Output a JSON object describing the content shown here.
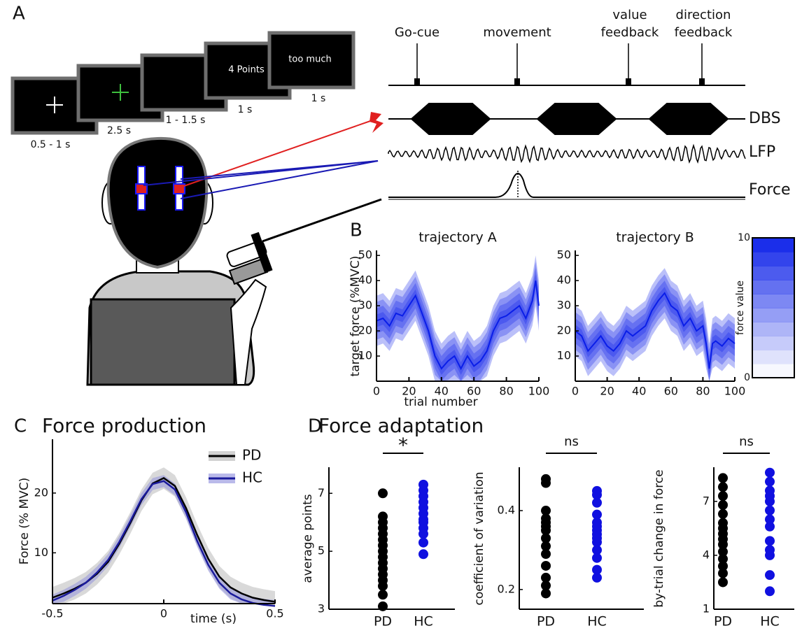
{
  "panel_labels": [
    "A",
    "B",
    "C",
    "D"
  ],
  "panel_d_title": "Force adaptation",
  "panel_a": {
    "screens": [
      {
        "duration": "0.5 - 1 s"
      },
      {
        "duration": "2.5 s"
      },
      {
        "duration": "1 - 1.5 s"
      },
      {
        "text": "4 Points",
        "duration": "1 s"
      },
      {
        "text": "too much",
        "duration": "1 s"
      }
    ],
    "events": [
      [
        "Go-cue"
      ],
      [
        "movement"
      ],
      [
        "value",
        "feedback"
      ],
      [
        "direction",
        "feedback"
      ]
    ],
    "signals": [
      "DBS",
      "LFP",
      "Force"
    ]
  },
  "chart_data": [
    {
      "type": "line",
      "title": "trajectory A",
      "ylabel": "target force (%MVC)",
      "xlabel": "trial number",
      "x": [
        0,
        4,
        8,
        12,
        16,
        20,
        24,
        28,
        32,
        36,
        40,
        44,
        48,
        52,
        56,
        60,
        64,
        68,
        72,
        76,
        80,
        84,
        88,
        92,
        96,
        98,
        100
      ],
      "series": [
        {
          "color": "#0a1ee8",
          "spread": 10,
          "values": [
            24,
            25,
            22,
            27,
            26,
            30,
            34,
            27,
            20,
            10,
            5,
            8,
            10,
            5,
            10,
            6,
            8,
            12,
            20,
            25,
            26,
            28,
            30,
            25,
            32,
            40,
            30
          ]
        }
      ],
      "xlim": [
        0,
        100
      ],
      "xticks": [
        0,
        20,
        40,
        60,
        80,
        100
      ],
      "ylim": [
        0,
        52
      ],
      "yticks": [
        10,
        20,
        30,
        40,
        50
      ]
    },
    {
      "type": "line",
      "title": "trajectory B",
      "x": [
        0,
        4,
        8,
        12,
        16,
        20,
        24,
        28,
        32,
        36,
        40,
        44,
        48,
        52,
        56,
        60,
        64,
        68,
        72,
        76,
        80,
        82,
        84,
        86,
        88,
        92,
        96,
        100
      ],
      "series": [
        {
          "color": "#0a1ee8",
          "spread": 10,
          "values": [
            20,
            18,
            12,
            15,
            18,
            14,
            12,
            15,
            20,
            18,
            20,
            22,
            28,
            32,
            35,
            30,
            28,
            22,
            25,
            20,
            22,
            15,
            5,
            15,
            16,
            14,
            17,
            15
          ]
        }
      ],
      "xlim": [
        0,
        100
      ],
      "xticks": [
        0,
        20,
        40,
        60,
        80,
        100
      ],
      "ylim": [
        0,
        52
      ],
      "yticks": [
        10,
        20,
        30,
        40,
        50
      ]
    },
    {
      "type": "colorbar",
      "label": "force value",
      "color": "#0a1ee8",
      "ylim": [
        0,
        10
      ],
      "yticks": [
        0,
        10
      ]
    },
    {
      "type": "line",
      "title": "Force production",
      "ylabel": "Force (% MVC)",
      "xlabel": "time (s)",
      "x": [
        -0.5,
        -0.45,
        -0.4,
        -0.35,
        -0.3,
        -0.25,
        -0.2,
        -0.15,
        -0.1,
        -0.05,
        0,
        0.05,
        0.1,
        0.15,
        0.2,
        0.25,
        0.3,
        0.35,
        0.4,
        0.45,
        0.5
      ],
      "series": [
        {
          "name": "PD",
          "color": "#000000",
          "band_color": "#b4b4b4",
          "spread": 1.8,
          "values": [
            2.5,
            3.2,
            4,
            5,
            6.5,
            8.5,
            11.5,
            15,
            18.8,
            21.6,
            22.5,
            21.2,
            17.5,
            13,
            9,
            6,
            4.2,
            3.2,
            2.5,
            2.1,
            1.8
          ]
        },
        {
          "name": "HC",
          "color": "#1a1a9c",
          "band_color": "#8c8cdc",
          "spread": 1,
          "values": [
            2,
            2.8,
            3.8,
            5,
            6.7,
            8.8,
            11.8,
            15.3,
            19,
            21.5,
            22,
            20.6,
            16.8,
            12,
            8,
            5,
            3.2,
            2.2,
            1.6,
            1.3,
            1.1
          ]
        }
      ],
      "xlim": [
        -0.5,
        0.5
      ],
      "xticks": [
        -0.5,
        0,
        0.5
      ],
      "ylim": [
        1.5,
        29
      ],
      "yticks": [
        10,
        20
      ],
      "legend": "upper right"
    },
    {
      "type": "strip",
      "ylabel": "average points",
      "significance": "*",
      "categories": [
        "PD",
        "HC"
      ],
      "colors": [
        "#000000",
        "#1010e0"
      ],
      "values": [
        [
          3.1,
          3.5,
          3.8,
          4,
          4.2,
          4.4,
          4.6,
          4.8,
          5,
          5.2,
          5.4,
          5.6,
          5.8,
          6,
          6.2,
          7
        ],
        [
          4.9,
          5.3,
          5.6,
          5.8,
          6,
          6.1,
          6.3,
          6.5,
          6.7,
          6.9,
          7.1,
          7.3
        ]
      ],
      "ylim": [
        3,
        7.9
      ],
      "yticks": [
        3,
        5,
        7
      ]
    },
    {
      "type": "strip",
      "ylabel": "coefficient of variation",
      "significance": "ns",
      "categories": [
        "PD",
        "HC"
      ],
      "colors": [
        "#000000",
        "#1010e0"
      ],
      "values": [
        [
          0.19,
          0.21,
          0.23,
          0.26,
          0.29,
          0.31,
          0.33,
          0.35,
          0.36,
          0.37,
          0.38,
          0.4,
          0.47,
          0.48
        ],
        [
          0.23,
          0.25,
          0.28,
          0.3,
          0.32,
          0.33,
          0.34,
          0.35,
          0.36,
          0.37,
          0.39,
          0.42,
          0.44,
          0.45
        ]
      ],
      "ylim": [
        0.15,
        0.51
      ],
      "yticks": [
        0.2,
        0.4
      ]
    },
    {
      "type": "strip",
      "ylabel": "by-trial change in force",
      "significance": "ns",
      "categories": [
        "PD",
        "HC"
      ],
      "colors": [
        "#000000",
        "#1010e0"
      ],
      "values": [
        [
          2.5,
          3,
          3.4,
          3.8,
          4.2,
          4.6,
          4.9,
          5.2,
          5.5,
          5.8,
          6.3,
          6.8,
          7.3,
          7.8,
          8.3
        ],
        [
          2,
          2.9,
          4,
          4.3,
          4.8,
          5.6,
          6,
          6.5,
          7,
          7.3,
          7.6,
          8.1,
          8.6
        ]
      ],
      "ylim": [
        1,
        8.9
      ],
      "yticks": [
        1,
        4,
        7
      ]
    }
  ]
}
